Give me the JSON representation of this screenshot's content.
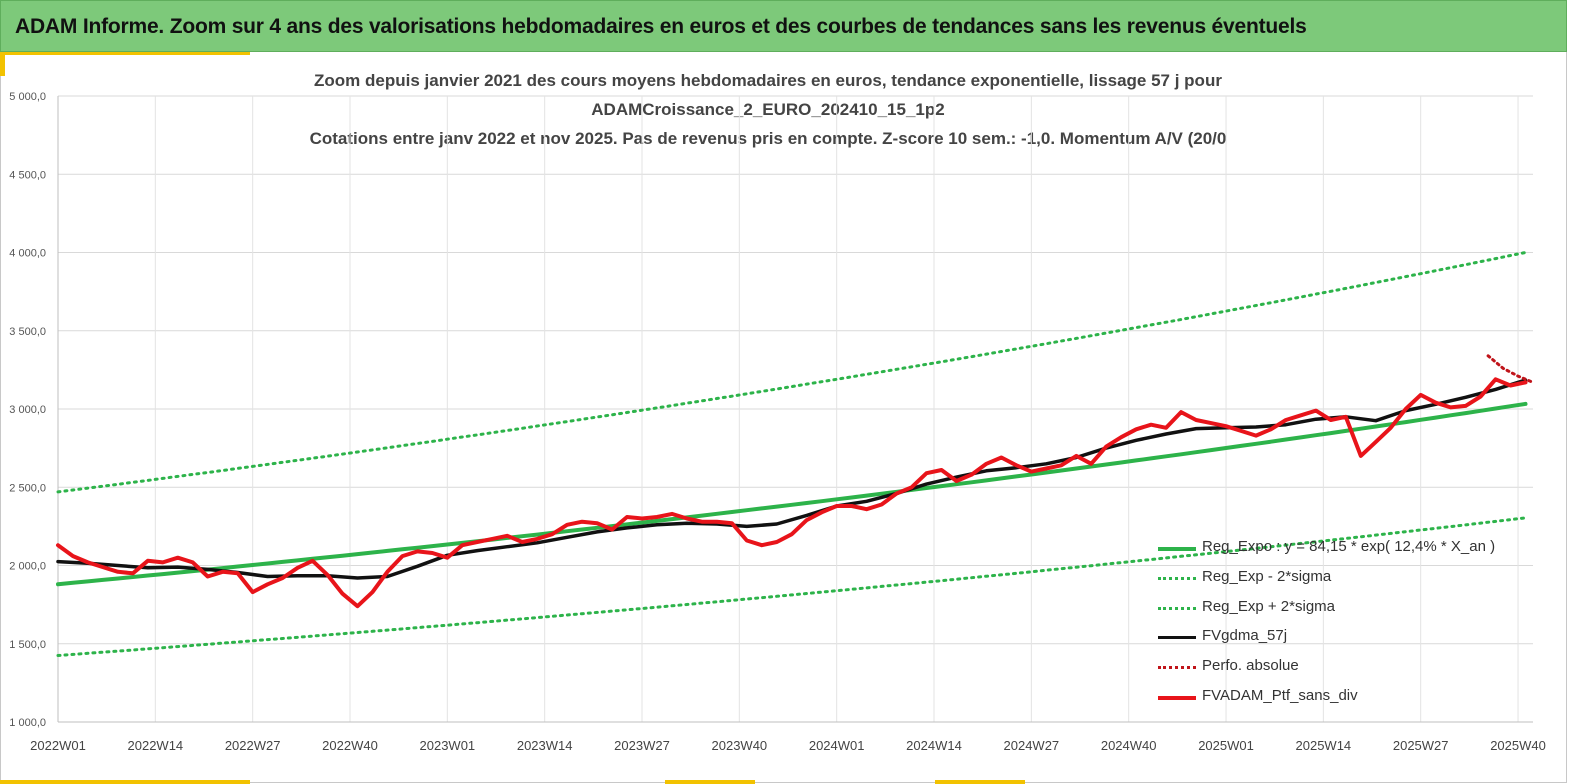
{
  "header": {
    "title": "ADAM Informe. Zoom sur 4 ans des valorisations hebdomadaires en euros et des courbes de tendances sans les revenus éventuels"
  },
  "chart_data": {
    "type": "line",
    "title_lines": [
      "Zoom depuis janvier 2021 des cours moyens hebdomadaires  en euros, tendance exponentielle, lissage 57 j pour",
      "ADAMCroissance_2_EURO_202410_15_1p2",
      "Cotations  entre janv 2022 et nov 2025. Pas de revenus pris en compte. Z-score 10 sem.: -1,0. Momentum A/V (20/0"
    ],
    "x_tick_labels": [
      "2022W01",
      "2022W14",
      "2022W27",
      "2022W40",
      "2023W01",
      "2023W14",
      "2023W27",
      "2023W40",
      "2024W01",
      "2024W14",
      "2024W27",
      "2024W40",
      "2025W01",
      "2025W14",
      "2025W27",
      "2025W40"
    ],
    "x_range_weeks": [
      0,
      197
    ],
    "y_tick_labels": [
      "1 000,0",
      "1 500,0",
      "2 000,0",
      "2 500,0",
      "3 000,0",
      "3 500,0",
      "4 000,0",
      "4 500,0",
      "5 000,0"
    ],
    "ylim": [
      1000,
      5000
    ],
    "grid": true,
    "legend_position": "bottom-right",
    "colors": {
      "green": "#2db34a",
      "black": "#111111",
      "red": "#e8141a",
      "darkred": "#c0141a"
    },
    "series": [
      {
        "name": "Reg_Expo : y = 84,15 *  exp( 12,4% *  X_an )",
        "style": "solid-green",
        "start": 1880,
        "end": 3040
      },
      {
        "name": "Reg_Exp - 2*sigma",
        "style": "dotted-green",
        "start": 1425,
        "end": 2310
      },
      {
        "name": "Reg_Exp + 2*sigma",
        "style": "dotted-green",
        "start": 2470,
        "end": 4010
      },
      {
        "name": "FVgdma_57j",
        "style": "solid-black",
        "x": [
          0,
          4,
          8,
          12,
          16,
          20,
          24,
          28,
          32,
          36,
          40,
          44,
          48,
          52,
          56,
          60,
          64,
          68,
          72,
          76,
          80,
          84,
          88,
          92,
          96,
          100,
          104,
          108,
          112,
          116,
          120,
          124,
          128,
          132,
          136,
          140,
          144,
          148,
          152,
          156,
          160,
          164,
          168,
          172,
          176,
          180,
          184,
          188,
          192,
          196
        ],
        "y": [
          2025,
          2015,
          2000,
          1985,
          1990,
          1975,
          1955,
          1930,
          1935,
          1935,
          1920,
          1930,
          1995,
          2065,
          2095,
          2120,
          2145,
          2180,
          2215,
          2240,
          2260,
          2270,
          2265,
          2250,
          2265,
          2320,
          2380,
          2410,
          2460,
          2520,
          2565,
          2605,
          2625,
          2650,
          2690,
          2750,
          2800,
          2840,
          2875,
          2880,
          2885,
          2900,
          2935,
          2950,
          2925,
          2990,
          3030,
          3075,
          3125,
          3185
        ]
      },
      {
        "name": "Perfo. absolue",
        "style": "dotted-darkred",
        "x": [
          191,
          193,
          195,
          197
        ],
        "y": [
          3340,
          3260,
          3210,
          3170
        ]
      },
      {
        "name": "FVADAM_Ptf_sans_div",
        "style": "solid-red",
        "x": [
          0,
          2,
          4,
          6,
          8,
          10,
          12,
          14,
          16,
          18,
          20,
          22,
          24,
          26,
          28,
          30,
          32,
          34,
          36,
          38,
          40,
          42,
          44,
          46,
          48,
          50,
          52,
          54,
          56,
          58,
          60,
          62,
          64,
          66,
          68,
          70,
          72,
          74,
          76,
          78,
          80,
          82,
          84,
          86,
          88,
          90,
          92,
          94,
          96,
          98,
          100,
          102,
          104,
          106,
          108,
          110,
          112,
          114,
          116,
          118,
          120,
          122,
          124,
          126,
          128,
          130,
          132,
          134,
          136,
          138,
          140,
          142,
          144,
          146,
          148,
          150,
          152,
          154,
          156,
          158,
          160,
          162,
          164,
          166,
          168,
          170,
          172,
          174,
          176,
          178,
          180,
          182,
          184,
          186,
          188,
          190,
          192,
          194,
          196
        ],
        "y": [
          2130,
          2060,
          2020,
          1990,
          1960,
          1950,
          2030,
          2020,
          2050,
          2020,
          1930,
          1960,
          1950,
          1830,
          1880,
          1920,
          1985,
          2030,
          1940,
          1820,
          1740,
          1830,
          1960,
          2060,
          2090,
          2080,
          2050,
          2130,
          2150,
          2170,
          2190,
          2150,
          2170,
          2200,
          2260,
          2280,
          2270,
          2230,
          2310,
          2300,
          2310,
          2330,
          2300,
          2280,
          2280,
          2270,
          2160,
          2130,
          2150,
          2200,
          2290,
          2340,
          2380,
          2380,
          2360,
          2390,
          2460,
          2500,
          2590,
          2610,
          2540,
          2580,
          2650,
          2690,
          2640,
          2600,
          2620,
          2640,
          2700,
          2650,
          2760,
          2820,
          2870,
          2900,
          2880,
          2980,
          2930,
          2910,
          2890,
          2860,
          2830,
          2870,
          2930,
          2960,
          2990,
          2930,
          2950,
          2700,
          2790,
          2880,
          3000,
          3090,
          3040,
          3010,
          3020,
          3080,
          3190,
          3150,
          3170
        ]
      }
    ]
  }
}
